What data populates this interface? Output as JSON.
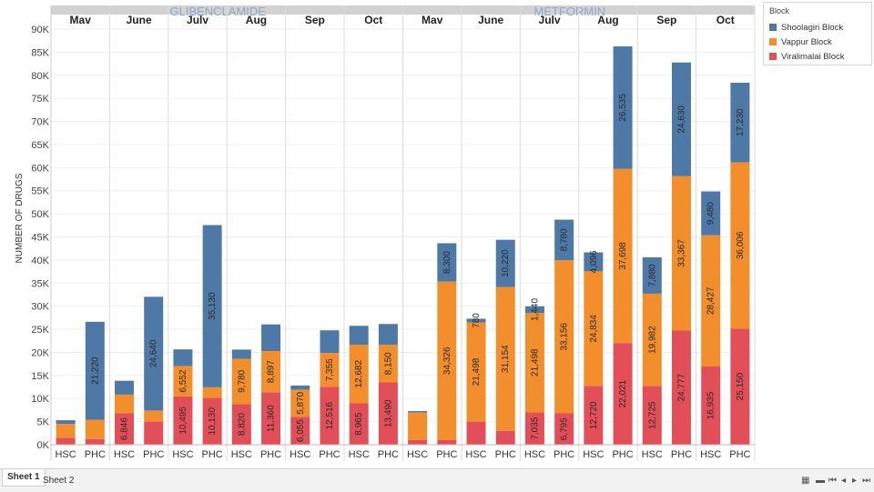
{
  "chart_data": {
    "type": "stacked-bar",
    "ylabel": "NUMBER OF DRUGS",
    "ylim": [
      0,
      90000
    ],
    "yticks": [
      0,
      5000,
      10000,
      15000,
      20000,
      25000,
      30000,
      35000,
      40000,
      45000,
      50000,
      55000,
      60000,
      65000,
      70000,
      75000,
      80000,
      85000,
      90000
    ],
    "ytick_labels": [
      "0K",
      "5K",
      "10K",
      "15K",
      "20K",
      "25K",
      "30K",
      "35K",
      "40K",
      "45K",
      "50K",
      "55K",
      "60K",
      "65K",
      "70K",
      "75K",
      "80K",
      "85K",
      "90K"
    ],
    "drugs": [
      "GLIBENCLAMIDE",
      "METFORMIN"
    ],
    "months": [
      "Mav",
      "June",
      "Julv",
      "Aug",
      "Sep",
      "Oct",
      "Mav",
      "June",
      "Julv",
      "Aug",
      "Sep",
      "Oct"
    ],
    "facility_labels": [
      "HSC",
      "PHC"
    ],
    "series_names": [
      "Viralimalai Block",
      "Vappur Block",
      "Shoolagiri Block"
    ],
    "colors": {
      "Viralimalai Block": "#e34f58",
      "Vappur Block": "#f28e2b",
      "Shoolagiri Block": "#4e79a7",
      "header": "#d2d2d2"
    },
    "bars": [
      {
        "drug": "GLIBENCLAMIDE",
        "month": "Mav",
        "facility": "HSC",
        "values": [
          1500,
          3000,
          800
        ],
        "labels": [
          "",
          "",
          ""
        ]
      },
      {
        "drug": "GLIBENCLAMIDE",
        "month": "Mav",
        "facility": "PHC",
        "values": [
          1200,
          4200,
          21220
        ],
        "labels": [
          "",
          "",
          "21,220"
        ]
      },
      {
        "drug": "GLIBENCLAMIDE",
        "month": "June",
        "facility": "HSC",
        "values": [
          6846,
          4000,
          3000
        ],
        "labels": [
          "6,846",
          "",
          ""
        ]
      },
      {
        "drug": "GLIBENCLAMIDE",
        "month": "June",
        "facility": "PHC",
        "values": [
          5000,
          2400,
          24640
        ],
        "labels": [
          "",
          "",
          "24,640"
        ]
      },
      {
        "drug": "GLIBENCLAMIDE",
        "month": "Julv",
        "facility": "HSC",
        "values": [
          10495,
          6552,
          3600
        ],
        "labels": [
          "10,495",
          "6,552",
          ""
        ]
      },
      {
        "drug": "GLIBENCLAMIDE",
        "month": "Julv",
        "facility": "PHC",
        "values": [
          10130,
          2300,
          35130
        ],
        "labels": [
          "10,130",
          "",
          "35,130"
        ]
      },
      {
        "drug": "GLIBENCLAMIDE",
        "month": "Aug",
        "facility": "HSC",
        "values": [
          8820,
          9780,
          2000
        ],
        "labels": [
          "8,820",
          "9,780",
          ""
        ]
      },
      {
        "drug": "GLIBENCLAMIDE",
        "month": "Aug",
        "facility": "PHC",
        "values": [
          11360,
          8897,
          5800
        ],
        "labels": [
          "11,360",
          "8,897",
          ""
        ]
      },
      {
        "drug": "GLIBENCLAMIDE",
        "month": "Sep",
        "facility": "HSC",
        "values": [
          6055,
          5870,
          900
        ],
        "labels": [
          "6,055",
          "5,870",
          ""
        ]
      },
      {
        "drug": "GLIBENCLAMIDE",
        "month": "Sep",
        "facility": "PHC",
        "values": [
          12516,
          7355,
          4900
        ],
        "labels": [
          "12,516",
          "7,355",
          ""
        ]
      },
      {
        "drug": "GLIBENCLAMIDE",
        "month": "Oct",
        "facility": "HSC",
        "values": [
          8965,
          12682,
          4100
        ],
        "labels": [
          "8,965",
          "12,682",
          ""
        ]
      },
      {
        "drug": "GLIBENCLAMIDE",
        "month": "Oct",
        "facility": "PHC",
        "values": [
          13490,
          8150,
          4500
        ],
        "labels": [
          "13,490",
          "8,150",
          ""
        ]
      },
      {
        "drug": "METFORMIN",
        "month": "Mav",
        "facility": "HSC",
        "values": [
          1000,
          6000,
          300
        ],
        "labels": [
          "",
          "",
          ""
        ]
      },
      {
        "drug": "METFORMIN",
        "month": "Mav",
        "facility": "PHC",
        "values": [
          1000,
          34326,
          8300
        ],
        "labels": [
          "",
          "34,326",
          "8,300"
        ]
      },
      {
        "drug": "METFORMIN",
        "month": "June",
        "facility": "HSC",
        "values": [
          5000,
          21498,
          780
        ],
        "labels": [
          "",
          "21,498",
          "780"
        ]
      },
      {
        "drug": "METFORMIN",
        "month": "June",
        "facility": "PHC",
        "values": [
          3000,
          31154,
          10220
        ],
        "labels": [
          "",
          "31,154",
          "10,220"
        ]
      },
      {
        "drug": "METFORMIN",
        "month": "Julv",
        "facility": "HSC",
        "values": [
          7035,
          21498,
          1440
        ],
        "labels": [
          "7,035",
          "21,498",
          "1,440"
        ]
      },
      {
        "drug": "METFORMIN",
        "month": "Julv",
        "facility": "PHC",
        "values": [
          6795,
          33156,
          8780
        ],
        "labels": [
          "6,795",
          "33,156",
          "8,780"
        ]
      },
      {
        "drug": "METFORMIN",
        "month": "Aug",
        "facility": "HSC",
        "values": [
          12720,
          24834,
          4096
        ],
        "labels": [
          "12,720",
          "24,834",
          "4,096"
        ]
      },
      {
        "drug": "METFORMIN",
        "month": "Aug",
        "facility": "PHC",
        "values": [
          22021,
          37698,
          26535
        ],
        "labels": [
          "22,021",
          "37,698",
          "26,535"
        ]
      },
      {
        "drug": "METFORMIN",
        "month": "Sep",
        "facility": "HSC",
        "values": [
          12725,
          19982,
          7880
        ],
        "labels": [
          "12,725",
          "19,982",
          "7,880"
        ]
      },
      {
        "drug": "METFORMIN",
        "month": "Sep",
        "facility": "PHC",
        "values": [
          24777,
          33367,
          24630
        ],
        "labels": [
          "24,777",
          "33,367",
          "24,630"
        ]
      },
      {
        "drug": "METFORMIN",
        "month": "Oct",
        "facility": "HSC",
        "values": [
          16935,
          28427,
          9480
        ],
        "labels": [
          "16,935",
          "28,427",
          "9,480"
        ]
      },
      {
        "drug": "METFORMIN",
        "month": "Oct",
        "facility": "PHC",
        "values": [
          25150,
          36006,
          17230
        ],
        "labels": [
          "25,150",
          "36,006",
          "17,230"
        ]
      }
    ]
  },
  "legend": {
    "title": "Block",
    "items": [
      {
        "label": "Shoolagiri Block",
        "color": "#4e79a7"
      },
      {
        "label": "Vappur Block",
        "color": "#f28e2b"
      },
      {
        "label": "Viralimalai Block",
        "color": "#e34f58"
      }
    ]
  },
  "sheets": {
    "sheet1": "Sheet 1",
    "sheet2": "Sheet 2"
  }
}
